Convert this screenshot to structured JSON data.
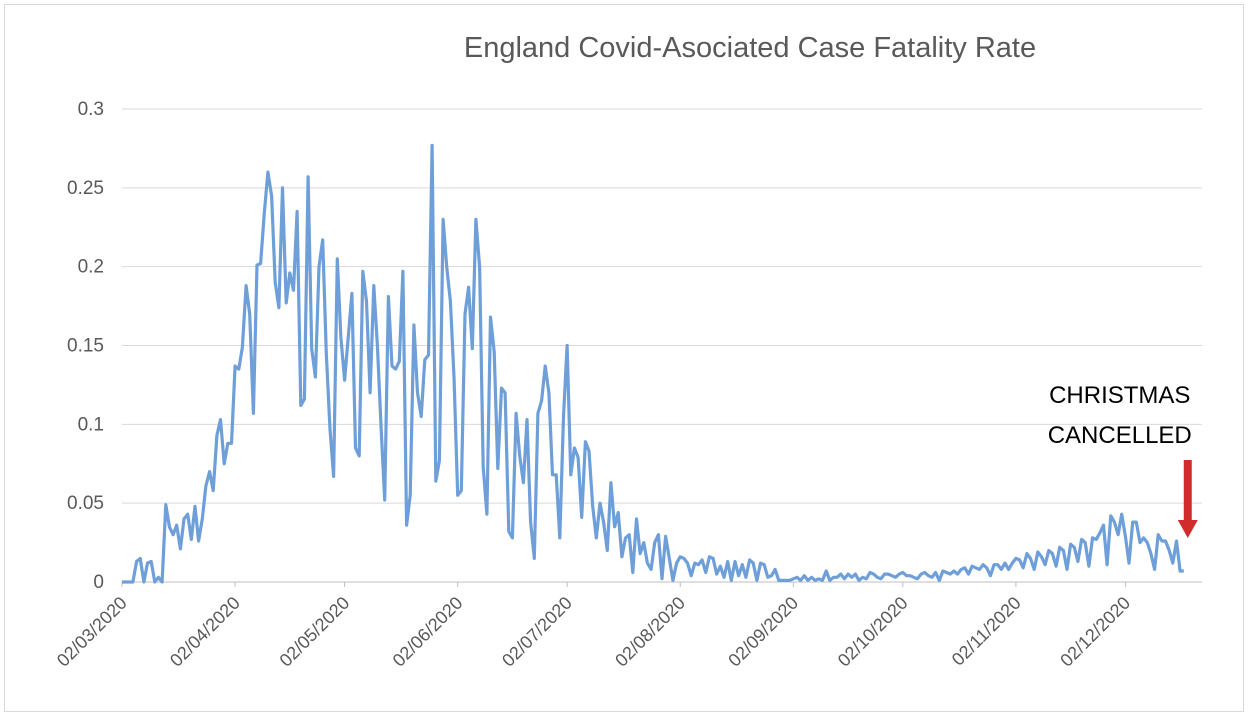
{
  "chart_data": {
    "type": "line",
    "title": "England Covid-Asociated Case Fatality Rate",
    "xlabel": "",
    "ylabel": "",
    "ylim": [
      0,
      0.3
    ],
    "yticks": [
      "0",
      "0.05",
      "0.1",
      "0.15",
      "0.2",
      "0.25",
      "0.3"
    ],
    "xticks": [
      "02/03/2020",
      "02/04/2020",
      "02/05/2020",
      "02/06/2020",
      "02/07/2020",
      "02/08/2020",
      "02/09/2020",
      "02/10/2020",
      "02/11/2020",
      "02/12/2020"
    ],
    "grid": true,
    "series_color": "#6f9fd8",
    "x_start": "2020-03-02",
    "x_end": "2020-12-23",
    "points": [
      [
        "2020-03-02",
        0
      ],
      [
        "2020-03-05",
        0
      ],
      [
        "2020-03-06",
        0.013
      ],
      [
        "2020-03-07",
        0.015
      ],
      [
        "2020-03-08",
        0
      ],
      [
        "2020-03-09",
        0.012
      ],
      [
        "2020-03-10",
        0.013
      ],
      [
        "2020-03-11",
        0
      ],
      [
        "2020-03-12",
        0.003
      ],
      [
        "2020-03-13",
        0
      ],
      [
        "2020-03-14",
        0.049
      ],
      [
        "2020-03-15",
        0.035
      ],
      [
        "2020-03-16",
        0.03
      ],
      [
        "2020-03-17",
        0.036
      ],
      [
        "2020-03-18",
        0.021
      ],
      [
        "2020-03-19",
        0.04
      ],
      [
        "2020-03-20",
        0.043
      ],
      [
        "2020-03-21",
        0.027
      ],
      [
        "2020-03-22",
        0.048
      ],
      [
        "2020-03-23",
        0.026
      ],
      [
        "2020-03-24",
        0.04
      ],
      [
        "2020-03-25",
        0.061
      ],
      [
        "2020-03-26",
        0.07
      ],
      [
        "2020-03-27",
        0.058
      ],
      [
        "2020-03-28",
        0.093
      ],
      [
        "2020-03-29",
        0.103
      ],
      [
        "2020-03-30",
        0.075
      ],
      [
        "2020-03-31",
        0.088
      ],
      [
        "2020-04-01",
        0.088
      ],
      [
        "2020-04-02",
        0.137
      ],
      [
        "2020-04-03",
        0.135
      ],
      [
        "2020-04-04",
        0.149
      ],
      [
        "2020-04-05",
        0.188
      ],
      [
        "2020-04-06",
        0.17
      ],
      [
        "2020-04-07",
        0.107
      ],
      [
        "2020-04-08",
        0.201
      ],
      [
        "2020-04-09",
        0.202
      ],
      [
        "2020-04-10",
        0.234
      ],
      [
        "2020-04-11",
        0.26
      ],
      [
        "2020-04-12",
        0.245
      ],
      [
        "2020-04-13",
        0.19
      ],
      [
        "2020-04-14",
        0.174
      ],
      [
        "2020-04-15",
        0.25
      ],
      [
        "2020-04-16",
        0.177
      ],
      [
        "2020-04-17",
        0.196
      ],
      [
        "2020-04-18",
        0.185
      ],
      [
        "2020-04-19",
        0.235
      ],
      [
        "2020-04-20",
        0.112
      ],
      [
        "2020-04-21",
        0.116
      ],
      [
        "2020-04-22",
        0.257
      ],
      [
        "2020-04-23",
        0.148
      ],
      [
        "2020-04-24",
        0.13
      ],
      [
        "2020-04-25",
        0.2
      ],
      [
        "2020-04-26",
        0.217
      ],
      [
        "2020-04-27",
        0.145
      ],
      [
        "2020-04-28",
        0.097
      ],
      [
        "2020-04-29",
        0.067
      ],
      [
        "2020-04-30",
        0.205
      ],
      [
        "2020-05-01",
        0.155
      ],
      [
        "2020-05-02",
        0.128
      ],
      [
        "2020-05-03",
        0.155
      ],
      [
        "2020-05-04",
        0.183
      ],
      [
        "2020-05-05",
        0.085
      ],
      [
        "2020-05-06",
        0.08
      ],
      [
        "2020-05-07",
        0.197
      ],
      [
        "2020-05-08",
        0.178
      ],
      [
        "2020-05-09",
        0.12
      ],
      [
        "2020-05-10",
        0.188
      ],
      [
        "2020-05-11",
        0.15
      ],
      [
        "2020-05-12",
        0.098
      ],
      [
        "2020-05-13",
        0.052
      ],
      [
        "2020-05-14",
        0.181
      ],
      [
        "2020-05-15",
        0.137
      ],
      [
        "2020-05-16",
        0.135
      ],
      [
        "2020-05-17",
        0.14
      ],
      [
        "2020-05-18",
        0.197
      ],
      [
        "2020-05-19",
        0.036
      ],
      [
        "2020-05-20",
        0.055
      ],
      [
        "2020-05-21",
        0.163
      ],
      [
        "2020-05-22",
        0.12
      ],
      [
        "2020-05-23",
        0.105
      ],
      [
        "2020-05-24",
        0.141
      ],
      [
        "2020-05-25",
        0.144
      ],
      [
        "2020-05-26",
        0.277
      ],
      [
        "2020-05-27",
        0.064
      ],
      [
        "2020-05-28",
        0.077
      ],
      [
        "2020-05-29",
        0.23
      ],
      [
        "2020-05-30",
        0.2
      ],
      [
        "2020-05-31",
        0.178
      ],
      [
        "2020-06-01",
        0.13
      ],
      [
        "2020-06-02",
        0.055
      ],
      [
        "2020-06-03",
        0.058
      ],
      [
        "2020-06-04",
        0.17
      ],
      [
        "2020-06-05",
        0.187
      ],
      [
        "2020-06-06",
        0.148
      ],
      [
        "2020-06-07",
        0.23
      ],
      [
        "2020-06-08",
        0.2
      ],
      [
        "2020-06-09",
        0.073
      ],
      [
        "2020-06-10",
        0.043
      ],
      [
        "2020-06-11",
        0.168
      ],
      [
        "2020-06-12",
        0.146
      ],
      [
        "2020-06-13",
        0.072
      ],
      [
        "2020-06-14",
        0.123
      ],
      [
        "2020-06-15",
        0.12
      ],
      [
        "2020-06-16",
        0.032
      ],
      [
        "2020-06-17",
        0.028
      ],
      [
        "2020-06-18",
        0.107
      ],
      [
        "2020-06-19",
        0.08
      ],
      [
        "2020-06-20",
        0.063
      ],
      [
        "2020-06-21",
        0.103
      ],
      [
        "2020-06-22",
        0.038
      ],
      [
        "2020-06-23",
        0.015
      ],
      [
        "2020-06-24",
        0.107
      ],
      [
        "2020-06-25",
        0.115
      ],
      [
        "2020-06-26",
        0.137
      ],
      [
        "2020-06-27",
        0.12
      ],
      [
        "2020-06-28",
        0.068
      ],
      [
        "2020-06-29",
        0.068
      ],
      [
        "2020-06-30",
        0.028
      ],
      [
        "2020-07-01",
        0.105
      ],
      [
        "2020-07-02",
        0.15
      ],
      [
        "2020-07-03",
        0.068
      ],
      [
        "2020-07-04",
        0.085
      ],
      [
        "2020-07-05",
        0.079
      ],
      [
        "2020-07-06",
        0.041
      ],
      [
        "2020-07-07",
        0.089
      ],
      [
        "2020-07-08",
        0.083
      ],
      [
        "2020-07-09",
        0.048
      ],
      [
        "2020-07-10",
        0.028
      ],
      [
        "2020-07-11",
        0.05
      ],
      [
        "2020-07-12",
        0.038
      ],
      [
        "2020-07-13",
        0.02
      ],
      [
        "2020-07-14",
        0.063
      ],
      [
        "2020-07-15",
        0.035
      ],
      [
        "2020-07-16",
        0.044
      ],
      [
        "2020-07-17",
        0.016
      ],
      [
        "2020-07-18",
        0.028
      ],
      [
        "2020-07-19",
        0.03
      ],
      [
        "2020-07-20",
        0.006
      ],
      [
        "2020-07-21",
        0.04
      ],
      [
        "2020-07-22",
        0.018
      ],
      [
        "2020-07-23",
        0.025
      ],
      [
        "2020-07-24",
        0.012
      ],
      [
        "2020-07-25",
        0.008
      ],
      [
        "2020-07-26",
        0.025
      ],
      [
        "2020-07-27",
        0.03
      ],
      [
        "2020-07-28",
        0.002
      ],
      [
        "2020-07-29",
        0.029
      ],
      [
        "2020-07-30",
        0.015
      ],
      [
        "2020-07-31",
        0.001
      ],
      [
        "2020-08-01",
        0.012
      ],
      [
        "2020-08-02",
        0.016
      ],
      [
        "2020-08-03",
        0.015
      ],
      [
        "2020-08-04",
        0.012
      ],
      [
        "2020-08-05",
        0.004
      ],
      [
        "2020-08-06",
        0.012
      ],
      [
        "2020-08-07",
        0.011
      ],
      [
        "2020-08-08",
        0.014
      ],
      [
        "2020-08-09",
        0.006
      ],
      [
        "2020-08-10",
        0.016
      ],
      [
        "2020-08-11",
        0.015
      ],
      [
        "2020-08-12",
        0.005
      ],
      [
        "2020-08-13",
        0.01
      ],
      [
        "2020-08-14",
        0.003
      ],
      [
        "2020-08-15",
        0.013
      ],
      [
        "2020-08-16",
        0.001
      ],
      [
        "2020-08-17",
        0.013
      ],
      [
        "2020-08-18",
        0.004
      ],
      [
        "2020-08-19",
        0.011
      ],
      [
        "2020-08-20",
        0.003
      ],
      [
        "2020-08-21",
        0.014
      ],
      [
        "2020-08-22",
        0.012
      ],
      [
        "2020-08-23",
        0.001
      ],
      [
        "2020-08-24",
        0.012
      ],
      [
        "2020-08-25",
        0.011
      ],
      [
        "2020-08-26",
        0.003
      ],
      [
        "2020-08-27",
        0.004
      ],
      [
        "2020-08-28",
        0.008
      ],
      [
        "2020-08-29",
        0.001
      ],
      [
        "2020-08-30",
        0.001
      ],
      [
        "2020-08-31",
        0.001
      ],
      [
        "2020-09-01",
        0.001
      ],
      [
        "2020-09-02",
        0.002
      ],
      [
        "2020-09-03",
        0.003
      ],
      [
        "2020-09-04",
        0.001
      ],
      [
        "2020-09-05",
        0.004
      ],
      [
        "2020-09-06",
        0.001
      ],
      [
        "2020-09-07",
        0.003
      ],
      [
        "2020-09-08",
        0.001
      ],
      [
        "2020-09-09",
        0.002
      ],
      [
        "2020-09-10",
        0.001
      ],
      [
        "2020-09-11",
        0.007
      ],
      [
        "2020-09-12",
        0.001
      ],
      [
        "2020-09-13",
        0.003
      ],
      [
        "2020-09-14",
        0.003
      ],
      [
        "2020-09-15",
        0.005
      ],
      [
        "2020-09-16",
        0.002
      ],
      [
        "2020-09-17",
        0.005
      ],
      [
        "2020-09-18",
        0.003
      ],
      [
        "2020-09-19",
        0.005
      ],
      [
        "2020-09-20",
        0.001
      ],
      [
        "2020-09-21",
        0.003
      ],
      [
        "2020-09-22",
        0.002
      ],
      [
        "2020-09-23",
        0.006
      ],
      [
        "2020-09-24",
        0.005
      ],
      [
        "2020-09-25",
        0.003
      ],
      [
        "2020-09-26",
        0.002
      ],
      [
        "2020-09-27",
        0.005
      ],
      [
        "2020-09-28",
        0.005
      ],
      [
        "2020-09-29",
        0.004
      ],
      [
        "2020-09-30",
        0.003
      ],
      [
        "2020-10-01",
        0.005
      ],
      [
        "2020-10-02",
        0.006
      ],
      [
        "2020-10-03",
        0.004
      ],
      [
        "2020-10-04",
        0.004
      ],
      [
        "2020-10-05",
        0.003
      ],
      [
        "2020-10-06",
        0.002
      ],
      [
        "2020-10-07",
        0.005
      ],
      [
        "2020-10-08",
        0.006
      ],
      [
        "2020-10-09",
        0.004
      ],
      [
        "2020-10-10",
        0.003
      ],
      [
        "2020-10-11",
        0.006
      ],
      [
        "2020-10-12",
        0.001
      ],
      [
        "2020-10-13",
        0.007
      ],
      [
        "2020-10-14",
        0.006
      ],
      [
        "2020-10-15",
        0.005
      ],
      [
        "2020-10-16",
        0.007
      ],
      [
        "2020-10-17",
        0.005
      ],
      [
        "2020-10-18",
        0.008
      ],
      [
        "2020-10-19",
        0.009
      ],
      [
        "2020-10-20",
        0.005
      ],
      [
        "2020-10-21",
        0.01
      ],
      [
        "2020-10-22",
        0.009
      ],
      [
        "2020-10-23",
        0.008
      ],
      [
        "2020-10-24",
        0.011
      ],
      [
        "2020-10-25",
        0.009
      ],
      [
        "2020-10-26",
        0.004
      ],
      [
        "2020-10-27",
        0.011
      ],
      [
        "2020-10-28",
        0.011
      ],
      [
        "2020-10-29",
        0.008
      ],
      [
        "2020-10-30",
        0.012
      ],
      [
        "2020-10-31",
        0.008
      ],
      [
        "2020-11-01",
        0.012
      ],
      [
        "2020-11-02",
        0.015
      ],
      [
        "2020-11-03",
        0.014
      ],
      [
        "2020-11-04",
        0.009
      ],
      [
        "2020-11-05",
        0.018
      ],
      [
        "2020-11-06",
        0.015
      ],
      [
        "2020-11-07",
        0.008
      ],
      [
        "2020-11-08",
        0.019
      ],
      [
        "2020-11-09",
        0.016
      ],
      [
        "2020-11-10",
        0.011
      ],
      [
        "2020-11-11",
        0.02
      ],
      [
        "2020-11-12",
        0.018
      ],
      [
        "2020-11-13",
        0.01
      ],
      [
        "2020-11-14",
        0.022
      ],
      [
        "2020-11-15",
        0.02
      ],
      [
        "2020-11-16",
        0.008
      ],
      [
        "2020-11-17",
        0.024
      ],
      [
        "2020-11-18",
        0.022
      ],
      [
        "2020-11-19",
        0.013
      ],
      [
        "2020-11-20",
        0.027
      ],
      [
        "2020-11-21",
        0.025
      ],
      [
        "2020-11-22",
        0.01
      ],
      [
        "2020-11-23",
        0.028
      ],
      [
        "2020-11-24",
        0.027
      ],
      [
        "2020-11-25",
        0.031
      ],
      [
        "2020-11-26",
        0.036
      ],
      [
        "2020-11-27",
        0.011
      ],
      [
        "2020-11-28",
        0.042
      ],
      [
        "2020-11-29",
        0.038
      ],
      [
        "2020-11-30",
        0.03
      ],
      [
        "2020-12-01",
        0.043
      ],
      [
        "2020-12-02",
        0.029
      ],
      [
        "2020-12-03",
        0.012
      ],
      [
        "2020-12-04",
        0.038
      ],
      [
        "2020-12-05",
        0.038
      ],
      [
        "2020-12-06",
        0.025
      ],
      [
        "2020-12-07",
        0.028
      ],
      [
        "2020-12-08",
        0.025
      ],
      [
        "2020-12-09",
        0.018
      ],
      [
        "2020-12-10",
        0.008
      ],
      [
        "2020-12-11",
        0.03
      ],
      [
        "2020-12-12",
        0.026
      ],
      [
        "2020-12-13",
        0.026
      ],
      [
        "2020-12-14",
        0.02
      ],
      [
        "2020-12-15",
        0.012
      ],
      [
        "2020-12-16",
        0.026
      ],
      [
        "2020-12-17",
        0.007
      ],
      [
        "2020-12-18",
        0.007
      ]
    ],
    "annotation": {
      "lines": [
        "CHRISTMAS",
        "CANCELLED"
      ],
      "arrow_color": "#d22b2b",
      "target_date": "2020-12-18"
    }
  }
}
